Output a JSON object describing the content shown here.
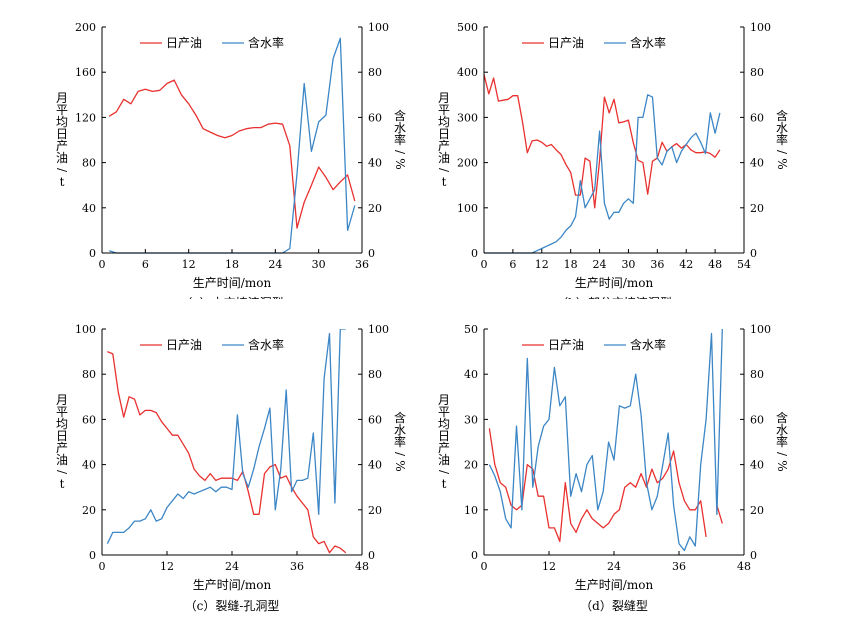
{
  "colors": {
    "oil": "#e8312f",
    "water": "#3c86c6",
    "axis": "#000000"
  },
  "chart_data": [
    {
      "type": "line",
      "caption": "（a）未充填溶洞型",
      "xlabel": "生产时间/mon",
      "ylabel_left": "月平均日产油/t",
      "ylabel_right": "含水率/%",
      "xlim": [
        0,
        36
      ],
      "xticks": [
        "0",
        "6",
        "12",
        "18",
        "24",
        "30",
        "36"
      ],
      "ylim_left": [
        0,
        200
      ],
      "yticks_left": [
        "0",
        "40",
        "80",
        "120",
        "160",
        "200"
      ],
      "ylim_right": [
        0,
        100
      ],
      "yticks_right": [
        "0",
        "20",
        "40",
        "60",
        "80",
        "100"
      ],
      "legend": [
        "日产油",
        "含水率"
      ],
      "series": [
        {
          "name": "日产油",
          "axis": "left",
          "x": [
            1,
            2,
            3,
            4,
            5,
            6,
            7,
            8,
            9,
            10,
            11,
            12,
            13,
            14,
            15,
            16,
            17,
            18,
            19,
            20,
            21,
            22,
            23,
            24,
            25,
            26,
            27,
            28,
            29,
            30,
            31,
            32,
            33,
            34,
            35
          ],
          "y": [
            121,
            125,
            136,
            132,
            143,
            145,
            143,
            144,
            150,
            153,
            140,
            132,
            122,
            110,
            107,
            104,
            102,
            104,
            108,
            110,
            111,
            111,
            114,
            115,
            114,
            95,
            22,
            45,
            60,
            76,
            67,
            56,
            63,
            69,
            46
          ]
        },
        {
          "name": "含水率",
          "axis": "right",
          "x": [
            1,
            2,
            3,
            4,
            5,
            6,
            7,
            8,
            9,
            10,
            11,
            12,
            13,
            14,
            15,
            16,
            17,
            18,
            19,
            20,
            21,
            22,
            23,
            24,
            25,
            26,
            27,
            28,
            29,
            30,
            31,
            32,
            33,
            34,
            35
          ],
          "y": [
            1,
            0,
            0,
            0,
            0,
            0,
            0,
            0,
            0,
            0,
            0,
            0,
            0,
            0,
            0,
            0,
            0,
            0,
            0,
            0,
            0,
            0,
            0,
            0,
            0,
            2,
            35,
            75,
            45,
            58,
            61,
            86,
            95,
            10,
            21
          ]
        }
      ]
    },
    {
      "type": "line",
      "caption": "（b）部分充填溶洞型",
      "xlabel": "生产时间/mon",
      "ylabel_left": "月平均日产油/t",
      "ylabel_right": "含水率/%",
      "xlim": [
        0,
        54
      ],
      "xticks": [
        "0",
        "6",
        "12",
        "18",
        "24",
        "30",
        "36",
        "42",
        "48",
        "54"
      ],
      "ylim_left": [
        0,
        500
      ],
      "yticks_left": [
        "0",
        "100",
        "200",
        "300",
        "400",
        "500"
      ],
      "ylim_right": [
        0,
        100
      ],
      "yticks_right": [
        "0",
        "20",
        "40",
        "60",
        "80",
        "100"
      ],
      "legend": [
        "日产油",
        "含水率"
      ],
      "series": [
        {
          "name": "日产油",
          "axis": "left",
          "x": [
            0,
            1,
            2,
            3,
            4,
            5,
            6,
            7,
            8,
            9,
            10,
            11,
            12,
            13,
            14,
            15,
            16,
            17,
            18,
            19,
            20,
            21,
            22,
            23,
            24,
            25,
            26,
            27,
            28,
            29,
            30,
            31,
            32,
            33,
            34,
            35,
            36,
            37,
            38,
            39,
            40,
            41,
            42,
            43,
            44,
            45,
            46,
            47,
            48,
            49
          ],
          "y": [
            395,
            352,
            387,
            336,
            338,
            340,
            348,
            348,
            290,
            222,
            248,
            250,
            245,
            236,
            240,
            228,
            218,
            196,
            178,
            128,
            128,
            210,
            203,
            100,
            205,
            345,
            310,
            340,
            288,
            290,
            294,
            244,
            205,
            200,
            130,
            203,
            210,
            245,
            225,
            235,
            242,
            232,
            240,
            228,
            222,
            222,
            224,
            220,
            212,
            228
          ]
        },
        {
          "name": "含水率",
          "axis": "right",
          "x": [
            0,
            1,
            2,
            3,
            4,
            5,
            6,
            7,
            8,
            9,
            10,
            11,
            12,
            13,
            14,
            15,
            16,
            17,
            18,
            19,
            20,
            21,
            22,
            23,
            24,
            25,
            26,
            27,
            28,
            29,
            30,
            31,
            32,
            33,
            34,
            35,
            36,
            37,
            38,
            39,
            40,
            41,
            42,
            43,
            44,
            45,
            46,
            47,
            48,
            49
          ],
          "y": [
            0,
            0,
            0,
            0,
            0,
            0,
            0,
            0,
            0,
            0,
            0,
            1,
            2,
            3,
            4,
            5,
            7,
            10,
            12,
            16,
            32,
            20,
            24,
            28,
            54,
            22,
            15,
            18,
            18,
            22,
            24,
            22,
            60,
            60,
            70,
            69,
            42,
            39,
            45,
            47,
            40,
            45,
            48,
            51,
            53,
            49,
            44,
            62,
            53,
            62
          ]
        }
      ]
    },
    {
      "type": "line",
      "caption": "（c）裂缝-孔洞型",
      "xlabel": "生产时间/mon",
      "ylabel_left": "月平均日产油/t",
      "ylabel_right": "含水率/%",
      "xlim": [
        0,
        48
      ],
      "xticks": [
        "0",
        "12",
        "24",
        "36",
        "48"
      ],
      "ylim_left": [
        0,
        100
      ],
      "yticks_left": [
        "0",
        "20",
        "40",
        "60",
        "80",
        "100"
      ],
      "ylim_right": [
        0,
        100
      ],
      "yticks_right": [
        "0",
        "20",
        "40",
        "60",
        "80",
        "100"
      ],
      "legend": [
        "日产油",
        "含水率"
      ],
      "series": [
        {
          "name": "日产油",
          "axis": "left",
          "x": [
            1,
            2,
            3,
            4,
            5,
            6,
            7,
            8,
            9,
            10,
            11,
            12,
            13,
            14,
            15,
            16,
            17,
            18,
            19,
            20,
            21,
            22,
            23,
            24,
            25,
            26,
            27,
            28,
            29,
            30,
            31,
            32,
            33,
            34,
            35,
            36,
            37,
            38,
            39,
            40,
            41,
            42,
            43,
            44,
            45
          ],
          "y": [
            90,
            89,
            72,
            61,
            70,
            69,
            62,
            64,
            64,
            63,
            59,
            56,
            53,
            53,
            49,
            45,
            38,
            35,
            33,
            36,
            33,
            34,
            34,
            34,
            33,
            37,
            28,
            18,
            18,
            36,
            39,
            40,
            34,
            35,
            30,
            26,
            23,
            20,
            8,
            5,
            6,
            1,
            4,
            3,
            1
          ]
        },
        {
          "name": "含水率",
          "axis": "right",
          "x": [
            1,
            2,
            3,
            4,
            5,
            6,
            7,
            8,
            9,
            10,
            11,
            12,
            13,
            14,
            15,
            16,
            17,
            18,
            19,
            20,
            21,
            22,
            23,
            24,
            25,
            26,
            27,
            28,
            29,
            30,
            31,
            32,
            33,
            34,
            35,
            36,
            37,
            38,
            39,
            40,
            41,
            42,
            43,
            44,
            45
          ],
          "y": [
            5,
            10,
            10,
            10,
            12,
            15,
            15,
            16,
            20,
            15,
            16,
            21,
            24,
            27,
            25,
            28,
            27,
            28,
            29,
            30,
            28,
            30,
            30,
            29,
            62,
            36,
            30,
            38,
            48,
            56,
            65,
            20,
            38,
            73,
            28,
            33,
            33,
            34,
            54,
            18,
            78,
            98,
            23,
            100,
            100
          ]
        }
      ]
    },
    {
      "type": "line",
      "caption": "（d）裂缝型",
      "xlabel": "生产时间/mon",
      "ylabel_left": "月平均日产油/t",
      "ylabel_right": "含水率/%",
      "xlim": [
        0,
        48
      ],
      "xticks": [
        "0",
        "12",
        "24",
        "36",
        "48"
      ],
      "ylim_left": [
        0,
        50
      ],
      "yticks_left": [
        "0",
        "10",
        "20",
        "30",
        "40",
        "50"
      ],
      "ylim_right": [
        0,
        100
      ],
      "yticks_right": [
        "0",
        "20",
        "40",
        "60",
        "80",
        "100"
      ],
      "legend": [
        "日产油",
        "含水率"
      ],
      "series": [
        {
          "name": "日产油",
          "axis": "left",
          "x": [
            1,
            2,
            3,
            4,
            5,
            6,
            7,
            8,
            9,
            10,
            11,
            12,
            13,
            14,
            15,
            16,
            17,
            18,
            19,
            20,
            21,
            22,
            23,
            24,
            25,
            26,
            27,
            28,
            29,
            30,
            31,
            32,
            33,
            34,
            35,
            36,
            37,
            38,
            39,
            40,
            41,
            42,
            43,
            44
          ],
          "y": [
            28,
            20,
            16,
            15,
            11,
            10,
            11,
            20,
            19,
            13,
            13,
            6,
            6,
            3,
            16,
            7,
            5,
            8,
            10,
            8,
            7,
            6,
            7,
            9,
            10,
            15,
            16,
            15,
            18,
            15,
            19,
            16,
            17,
            19,
            23,
            16,
            12,
            10,
            10,
            12,
            4,
            null,
            11,
            7
          ]
        },
        {
          "name": "含水率",
          "axis": "right",
          "x": [
            1,
            2,
            3,
            4,
            5,
            6,
            7,
            8,
            9,
            10,
            11,
            12,
            13,
            14,
            15,
            16,
            17,
            18,
            19,
            20,
            21,
            22,
            23,
            24,
            25,
            26,
            27,
            28,
            29,
            30,
            31,
            32,
            33,
            34,
            35,
            36,
            37,
            38,
            39,
            40,
            41,
            42,
            43,
            44
          ],
          "y": [
            40,
            35,
            28,
            16,
            12,
            57,
            20,
            87,
            30,
            48,
            57,
            60,
            83,
            66,
            70,
            26,
            36,
            28,
            40,
            44,
            20,
            28,
            50,
            42,
            66,
            65,
            66,
            80,
            62,
            32,
            20,
            26,
            40,
            54,
            22,
            5,
            2,
            8,
            4,
            40,
            60,
            98,
            18,
            100
          ]
        }
      ]
    }
  ]
}
